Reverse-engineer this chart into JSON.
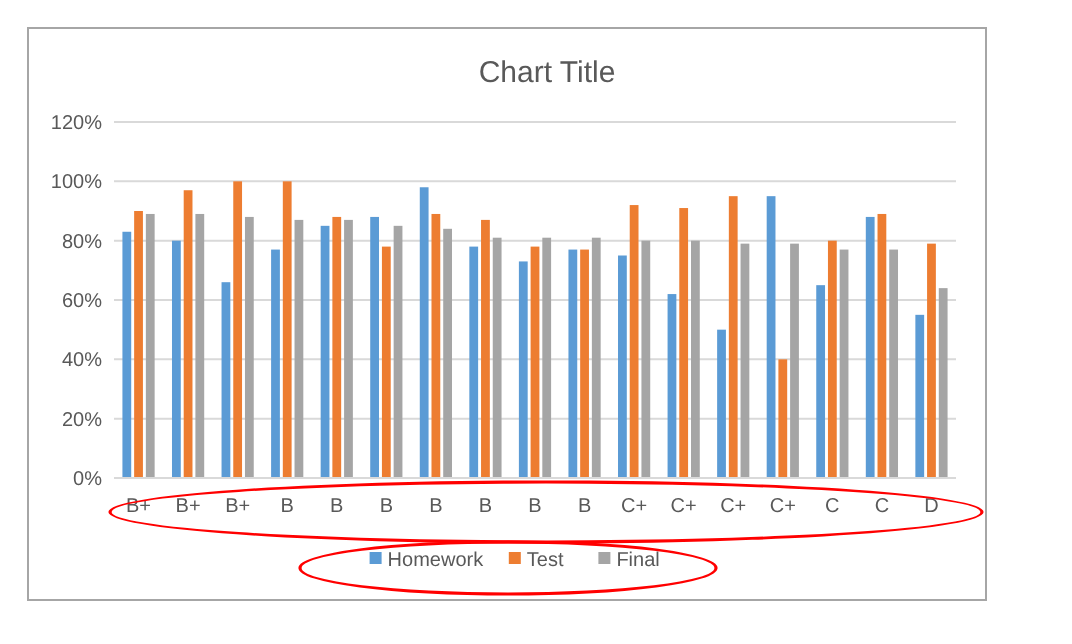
{
  "chart_data": {
    "type": "bar",
    "title": "Chart Title",
    "categories": [
      "B+",
      "B+",
      "B+",
      "B",
      "B",
      "B",
      "B",
      "B",
      "B",
      "B",
      "C+",
      "C+",
      "C+",
      "C+",
      "C",
      "C",
      "D"
    ],
    "series": [
      {
        "name": "Homework",
        "color": "#5b9bd5",
        "values": [
          83,
          80,
          66,
          77,
          85,
          88,
          98,
          78,
          73,
          77,
          75,
          62,
          50,
          95,
          65,
          88,
          55
        ]
      },
      {
        "name": "Test",
        "color": "#ed7d31",
        "values": [
          90,
          97,
          100,
          100,
          88,
          78,
          89,
          87,
          78,
          77,
          92,
          91,
          95,
          40,
          80,
          89,
          79
        ]
      },
      {
        "name": "Final",
        "color": "#a5a5a5",
        "values": [
          89,
          89,
          88,
          87,
          87,
          85,
          84,
          81,
          81,
          81,
          80,
          80,
          79,
          79,
          77,
          77,
          64
        ]
      }
    ],
    "ylim": [
      0,
      120
    ],
    "yticks": [
      {
        "value": 0,
        "label": "0%"
      },
      {
        "value": 20,
        "label": "20%"
      },
      {
        "value": 40,
        "label": "40%"
      },
      {
        "value": 60,
        "label": "60%"
      },
      {
        "value": 80,
        "label": "80%"
      },
      {
        "value": 100,
        "label": "100%"
      },
      {
        "value": 120,
        "label": "120%"
      }
    ],
    "grid": "y",
    "legend": "bottom"
  }
}
